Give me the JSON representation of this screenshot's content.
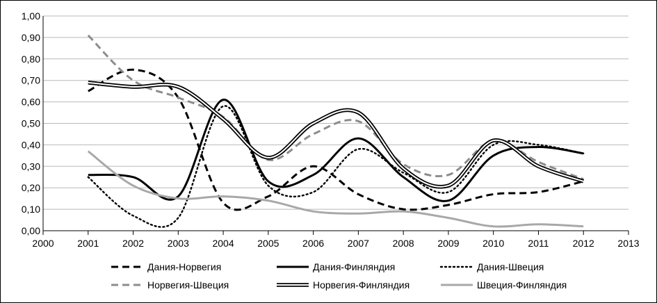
{
  "chart_data": {
    "type": "line",
    "title": "",
    "xlabel": "",
    "ylabel": "",
    "xlim": [
      2000,
      2013
    ],
    "ylim": [
      0,
      1
    ],
    "x_ticks": [
      "2000",
      "2001",
      "2002",
      "2003",
      "2004",
      "2005",
      "2006",
      "2007",
      "2008",
      "2009",
      "2010",
      "2011",
      "2012",
      "2013"
    ],
    "y_ticks": [
      "0,00",
      "0,10",
      "0,20",
      "0,30",
      "0,40",
      "0,50",
      "0,60",
      "0,70",
      "0,80",
      "0,90",
      "1,00"
    ],
    "grid": "horizontal",
    "legend": "bottom",
    "x": [
      2001,
      2002,
      2003,
      2004,
      2005,
      2006,
      2007,
      2008,
      2009,
      2010,
      2011,
      2012
    ],
    "series": [
      {
        "name": "Дания-Норвегия",
        "style": "dashed",
        "color": "#000000",
        "values": [
          0.65,
          0.75,
          0.62,
          0.13,
          0.16,
          0.3,
          0.17,
          0.1,
          0.12,
          0.17,
          0.18,
          0.23
        ]
      },
      {
        "name": "Дания-Финляндия",
        "style": "solid",
        "color": "#000000",
        "values": [
          0.26,
          0.25,
          0.16,
          0.61,
          0.23,
          0.26,
          0.43,
          0.25,
          0.14,
          0.35,
          0.39,
          0.36
        ]
      },
      {
        "name": "Дания-Швеция",
        "style": "dotted",
        "color": "#000000",
        "values": [
          0.25,
          0.07,
          0.06,
          0.58,
          0.21,
          0.18,
          0.38,
          0.27,
          0.18,
          0.4,
          0.4,
          0.36
        ]
      },
      {
        "name": "Норвегия-Швеция",
        "style": "dashed",
        "color": "#8c8c8c",
        "values": [
          0.91,
          0.7,
          0.62,
          0.53,
          0.33,
          0.45,
          0.51,
          0.31,
          0.26,
          0.42,
          0.32,
          0.24
        ]
      },
      {
        "name": "Норвегия-Финляндия",
        "style": "double",
        "color": "#000000",
        "values": [
          0.69,
          0.67,
          0.67,
          0.52,
          0.34,
          0.5,
          0.55,
          0.29,
          0.21,
          0.42,
          0.3,
          0.23
        ]
      },
      {
        "name": "Швеция-Финляндия",
        "style": "solid",
        "color": "#a8a8a8",
        "values": [
          0.37,
          0.21,
          0.15,
          0.16,
          0.14,
          0.09,
          0.08,
          0.09,
          0.06,
          0.02,
          0.03,
          0.02
        ]
      }
    ]
  }
}
